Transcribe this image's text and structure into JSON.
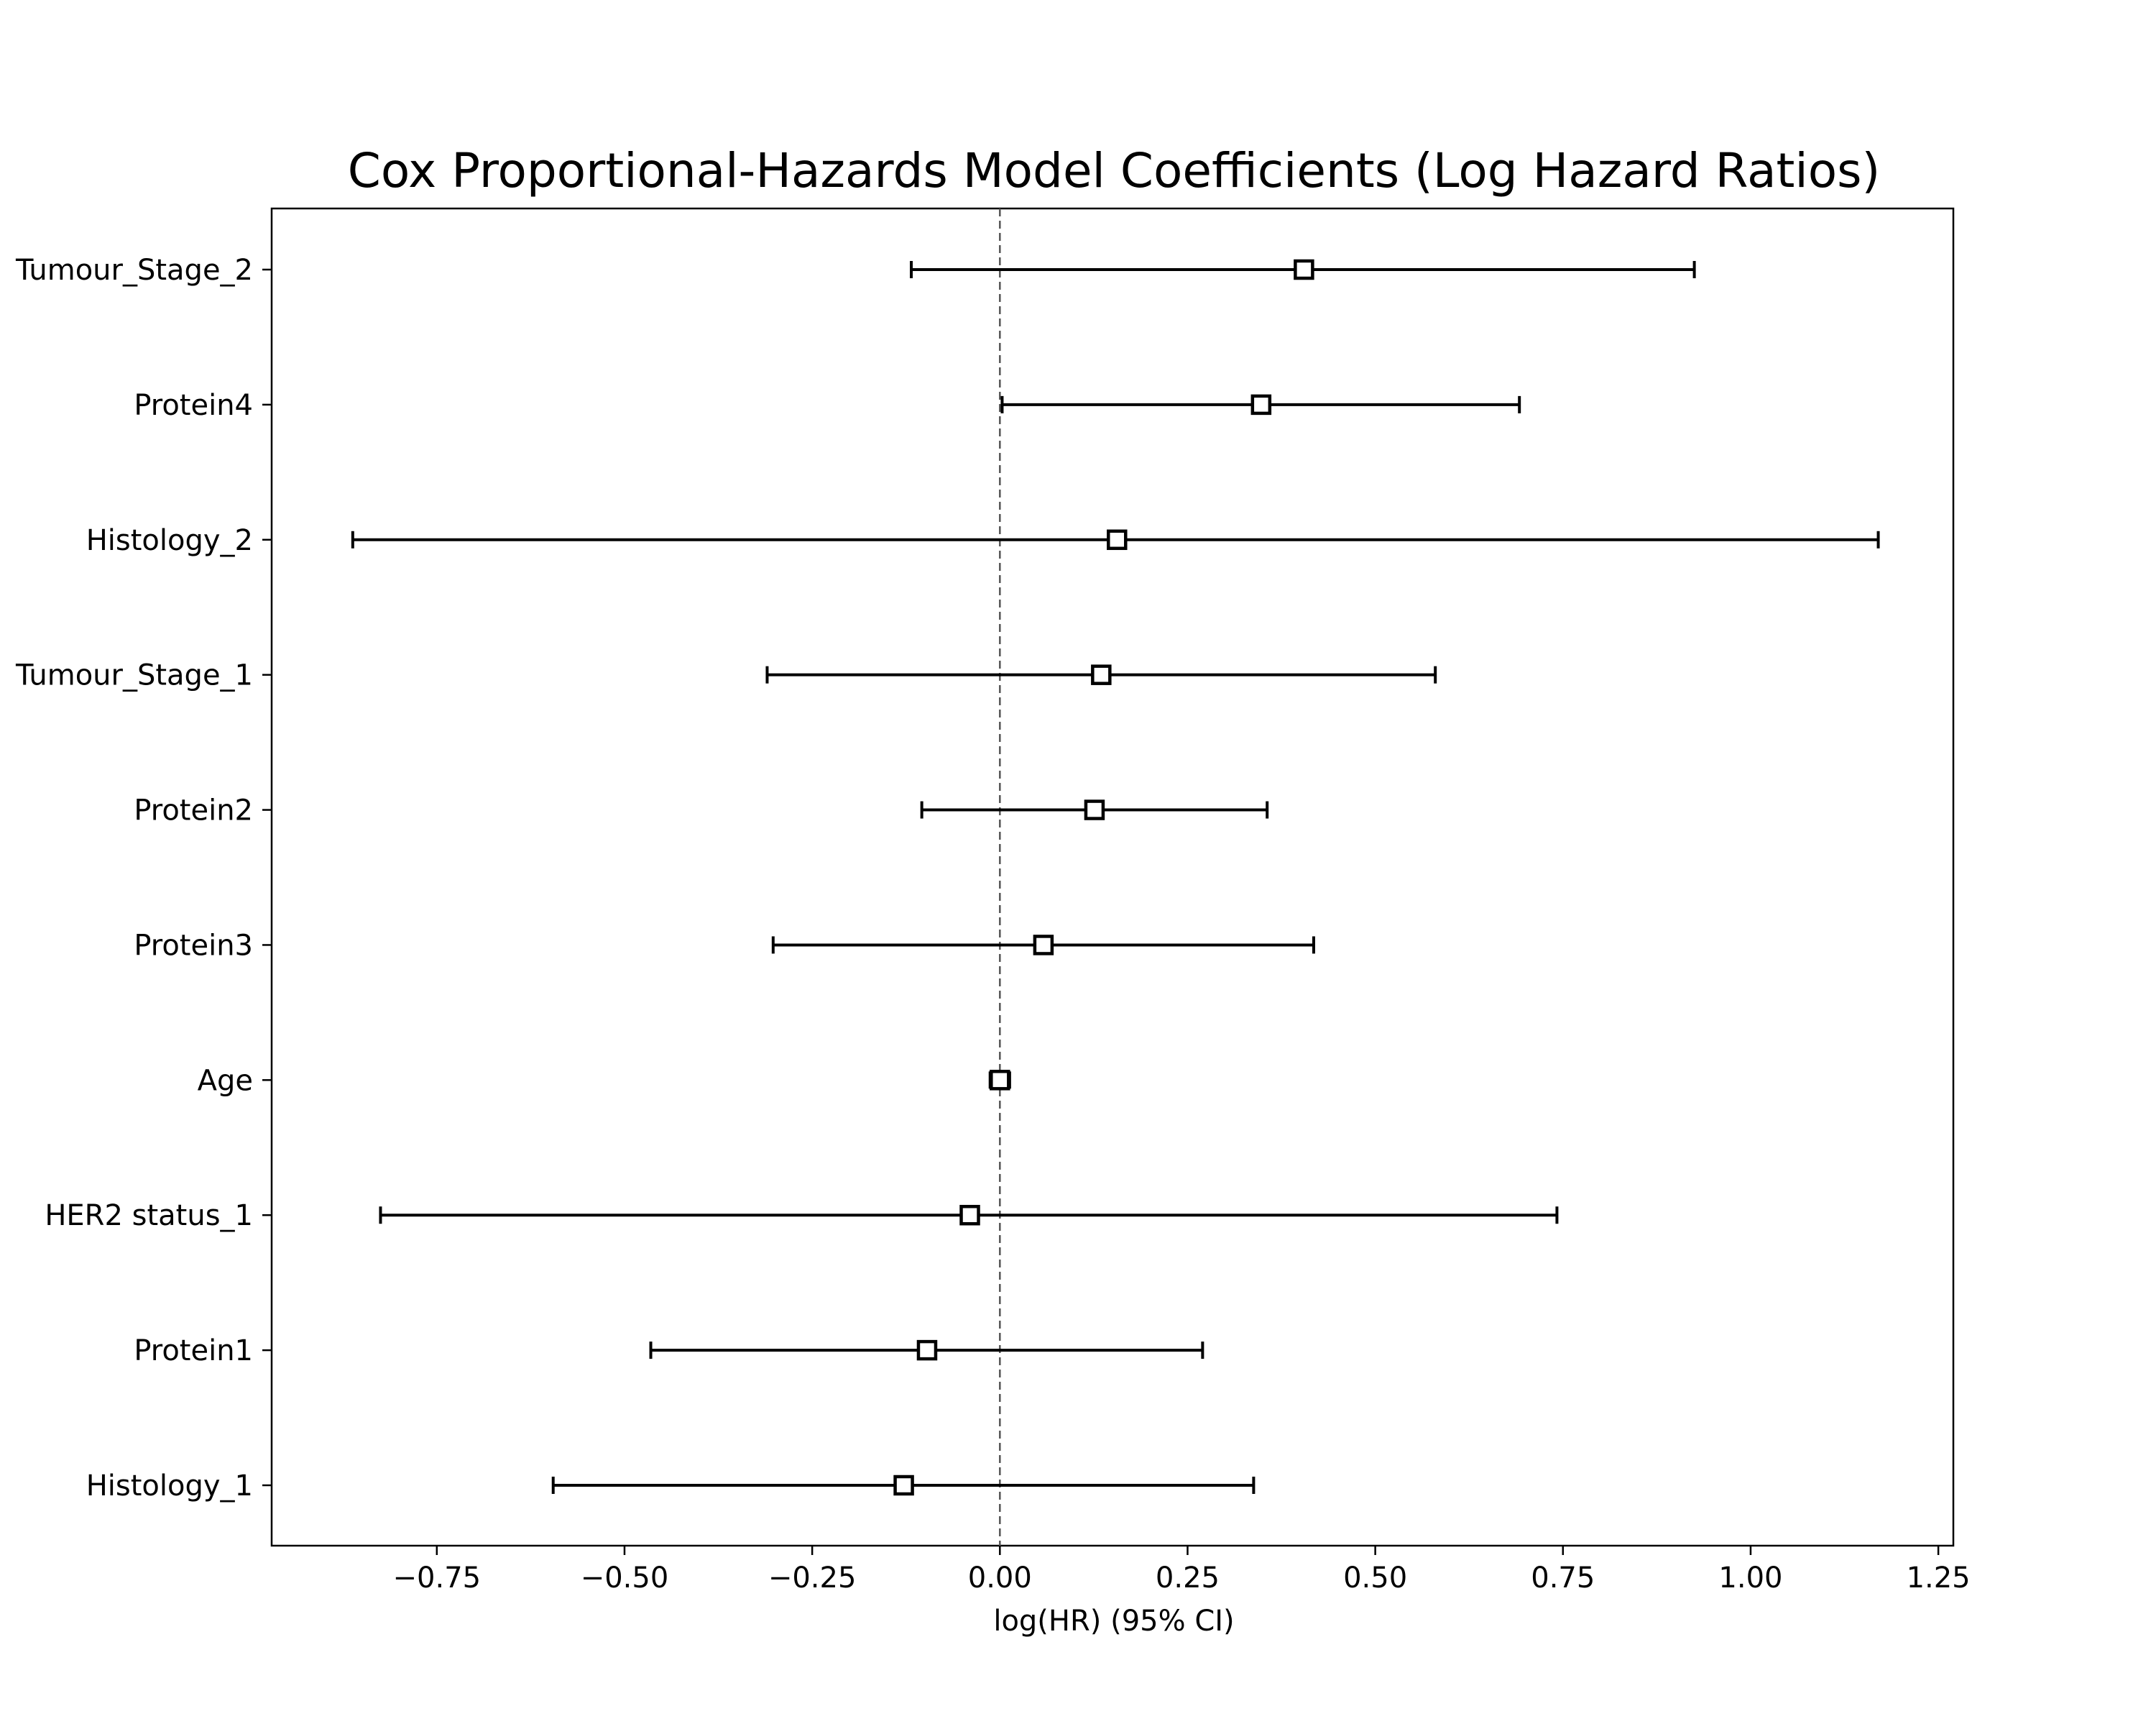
{
  "chart_data": {
    "type": "forest",
    "title": "Cox Proportional-Hazards Model Coefficients (Log Hazard Ratios)",
    "xlabel": "log(HR) (95% CI)",
    "ylabel": "",
    "xlim": [
      -0.97,
      1.27
    ],
    "x_ticks": [
      -0.75,
      -0.5,
      -0.25,
      0.0,
      0.25,
      0.5,
      0.75,
      1.0,
      1.25
    ],
    "x_tick_labels": [
      "−0.75",
      "−0.50",
      "−0.25",
      "0.00",
      "0.25",
      "0.50",
      "0.75",
      "1.00",
      "1.25"
    ],
    "reference_line": 0.0,
    "grid": false,
    "marker": "square",
    "series_color": "#000000",
    "reference_line_color": "#555555",
    "rows": [
      {
        "label": "Tumour_Stage_2",
        "coef": 0.405,
        "ci_low": -0.118,
        "ci_high": 0.925
      },
      {
        "label": "Protein4",
        "coef": 0.348,
        "ci_low": 0.003,
        "ci_high": 0.692
      },
      {
        "label": "Histology_2",
        "coef": 0.156,
        "ci_low": -0.862,
        "ci_high": 1.17
      },
      {
        "label": "Tumour_Stage_1",
        "coef": 0.135,
        "ci_low": -0.31,
        "ci_high": 0.58
      },
      {
        "label": "Protein2",
        "coef": 0.126,
        "ci_low": -0.104,
        "ci_high": 0.356
      },
      {
        "label": "Protein3",
        "coef": 0.058,
        "ci_low": -0.302,
        "ci_high": 0.418
      },
      {
        "label": "Age",
        "coef": 0.0,
        "ci_low": -0.013,
        "ci_high": 0.013
      },
      {
        "label": "HER2 status_1",
        "coef": -0.04,
        "ci_low": -0.825,
        "ci_high": 0.742
      },
      {
        "label": "Protein1",
        "coef": -0.097,
        "ci_low": -0.465,
        "ci_high": 0.27
      },
      {
        "label": "Histology_1",
        "coef": -0.128,
        "ci_low": -0.595,
        "ci_high": 0.338
      }
    ]
  }
}
